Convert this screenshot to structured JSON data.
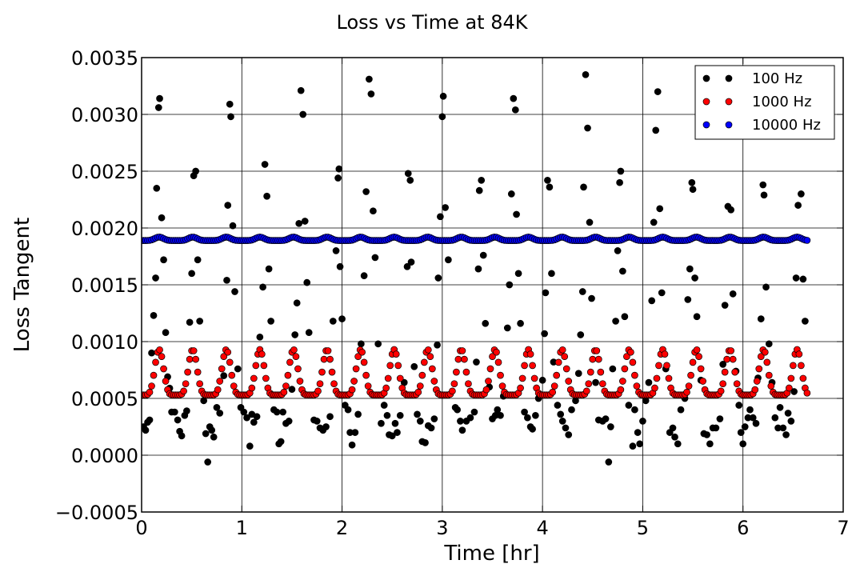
{
  "chart_data": {
    "type": "scatter",
    "title": "Loss vs Time at 84K",
    "xlabel": "Time [hr]",
    "ylabel": "Loss Tangent",
    "xlim": [
      0,
      7
    ],
    "ylim": [
      -0.0005,
      0.0035
    ],
    "xticks": [
      "0",
      "1",
      "2",
      "3",
      "4",
      "5",
      "6",
      "7"
    ],
    "yticks": [
      "−0.0005",
      "0.0000",
      "0.0005",
      "0.0010",
      "0.0015",
      "0.0020",
      "0.0025",
      "0.0030",
      "0.0035"
    ],
    "grid": true,
    "legend_position": "top-right",
    "series": [
      {
        "name": "100 Hz",
        "color": "#000000",
        "points": [
          [
            0.02,
            0.00025
          ],
          [
            0.04,
            0.00022
          ],
          [
            0.06,
            0.00029
          ],
          [
            0.08,
            0.00031
          ],
          [
            0.1,
            0.0009
          ],
          [
            0.12,
            0.00123
          ],
          [
            0.14,
            0.00156
          ],
          [
            0.15,
            0.00235
          ],
          [
            0.17,
            0.00306
          ],
          [
            0.18,
            0.00314
          ],
          [
            0.2,
            0.00209
          ],
          [
            0.22,
            0.00172
          ],
          [
            0.24,
            0.00108
          ],
          [
            0.26,
            0.00069
          ],
          [
            0.28,
            0.00059
          ],
          [
            0.3,
            0.00038
          ],
          [
            0.33,
            0.00038
          ],
          [
            0.36,
            0.00031
          ],
          [
            0.38,
            0.00021
          ],
          [
            0.4,
            0.00017
          ],
          [
            0.43,
            0.00035
          ],
          [
            0.45,
            0.00039
          ],
          [
            0.48,
            0.00117
          ],
          [
            0.5,
            0.0016
          ],
          [
            0.52,
            0.00246
          ],
          [
            0.54,
            0.0025
          ],
          [
            0.56,
            0.00172
          ],
          [
            0.58,
            0.00118
          ],
          [
            0.62,
            0.00048
          ],
          [
            0.64,
            0.00019
          ],
          [
            0.66,
            -6e-05
          ],
          [
            0.68,
            0.00025
          ],
          [
            0.7,
            0.00022
          ],
          [
            0.72,
            0.00016
          ],
          [
            0.75,
            0.00042
          ],
          [
            0.78,
            0.00037
          ],
          [
            0.82,
            0.0007
          ],
          [
            0.85,
            0.00154
          ],
          [
            0.86,
            0.0022
          ],
          [
            0.88,
            0.00309
          ],
          [
            0.89,
            0.00298
          ],
          [
            0.91,
            0.00202
          ],
          [
            0.93,
            0.00144
          ],
          [
            0.96,
            0.00076
          ],
          [
            0.99,
            0.00042
          ],
          [
            1.02,
            0.00038
          ],
          [
            1.05,
            0.00033
          ],
          [
            1.08,
            8e-05
          ],
          [
            1.1,
            0.00036
          ],
          [
            1.12,
            0.00029
          ],
          [
            1.15,
            0.00034
          ],
          [
            1.18,
            0.00104
          ],
          [
            1.21,
            0.00148
          ],
          [
            1.23,
            0.00256
          ],
          [
            1.25,
            0.00228
          ],
          [
            1.27,
            0.00164
          ],
          [
            1.29,
            0.00118
          ],
          [
            1.32,
            0.0004
          ],
          [
            1.35,
            0.00038
          ],
          [
            1.37,
            0.0001
          ],
          [
            1.39,
            0.00012
          ],
          [
            1.41,
            0.00038
          ],
          [
            1.44,
            0.00028
          ],
          [
            1.47,
            0.0003
          ],
          [
            1.5,
            0.00058
          ],
          [
            1.53,
            0.00106
          ],
          [
            1.55,
            0.00134
          ],
          [
            1.57,
            0.00204
          ],
          [
            1.59,
            0.00321
          ],
          [
            1.61,
            0.003
          ],
          [
            1.63,
            0.00206
          ],
          [
            1.65,
            0.00152
          ],
          [
            1.67,
            0.00108
          ],
          [
            1.72,
            0.00031
          ],
          [
            1.75,
            0.0003
          ],
          [
            1.78,
            0.00024
          ],
          [
            1.81,
            0.00022
          ],
          [
            1.84,
            0.00025
          ],
          [
            1.88,
            0.00034
          ],
          [
            1.91,
            0.00118
          ],
          [
            1.94,
            0.0018
          ],
          [
            1.96,
            0.00244
          ],
          [
            1.97,
            0.00252
          ],
          [
            1.98,
            0.00166
          ],
          [
            2.0,
            0.0012
          ],
          [
            2.03,
            0.00044
          ],
          [
            2.06,
            0.0004
          ],
          [
            2.08,
            0.0002
          ],
          [
            2.1,
            9e-05
          ],
          [
            2.13,
            0.0002
          ],
          [
            2.16,
            0.00036
          ],
          [
            2.19,
            0.00098
          ],
          [
            2.22,
            0.00158
          ],
          [
            2.24,
            0.00232
          ],
          [
            2.27,
            0.00331
          ],
          [
            2.29,
            0.00318
          ],
          [
            2.31,
            0.00215
          ],
          [
            2.33,
            0.00174
          ],
          [
            2.36,
            0.00098
          ],
          [
            2.39,
            0.00028
          ],
          [
            2.42,
            0.00044
          ],
          [
            2.45,
            0.00035
          ],
          [
            2.47,
            0.00018
          ],
          [
            2.5,
            0.00017
          ],
          [
            2.53,
            0.00028
          ],
          [
            2.55,
            0.0002
          ],
          [
            2.58,
            0.00035
          ],
          [
            2.62,
            0.00064
          ],
          [
            2.65,
            0.00166
          ],
          [
            2.66,
            0.00248
          ],
          [
            2.68,
            0.00242
          ],
          [
            2.69,
            0.0017
          ],
          [
            2.72,
            0.00078
          ],
          [
            2.75,
            0.00036
          ],
          [
            2.78,
            0.0003
          ],
          [
            2.8,
            0.00012
          ],
          [
            2.83,
            0.00011
          ],
          [
            2.86,
            0.00026
          ],
          [
            2.89,
            0.00024
          ],
          [
            2.92,
            0.00032
          ],
          [
            2.95,
            0.00097
          ],
          [
            2.96,
            0.00156
          ],
          [
            2.98,
            0.0021
          ],
          [
            3.0,
            0.00298
          ],
          [
            3.01,
            0.00316
          ],
          [
            3.03,
            0.00218
          ],
          [
            3.06,
            0.00172
          ],
          [
            3.13,
            0.00042
          ],
          [
            3.15,
            0.0004
          ],
          [
            3.18,
            0.0003
          ],
          [
            3.2,
            0.00022
          ],
          [
            3.24,
            0.0003
          ],
          [
            3.28,
            0.00033
          ],
          [
            3.32,
            0.00038
          ],
          [
            3.34,
            0.00082
          ],
          [
            3.36,
            0.00164
          ],
          [
            3.37,
            0.00233
          ],
          [
            3.39,
            0.00242
          ],
          [
            3.41,
            0.00176
          ],
          [
            3.43,
            0.00116
          ],
          [
            3.47,
            0.0006
          ],
          [
            3.5,
            0.00032
          ],
          [
            3.53,
            0.00035
          ],
          [
            3.55,
            0.0004
          ],
          [
            3.58,
            0.00035
          ],
          [
            3.61,
            0.00052
          ],
          [
            3.65,
            0.00112
          ],
          [
            3.67,
            0.0015
          ],
          [
            3.69,
            0.0023
          ],
          [
            3.71,
            0.00314
          ],
          [
            3.73,
            0.00304
          ],
          [
            3.74,
            0.00212
          ],
          [
            3.76,
            0.0016
          ],
          [
            3.78,
            0.00116
          ],
          [
            3.82,
            0.00038
          ],
          [
            3.85,
            0.00033
          ],
          [
            3.88,
            0.00025
          ],
          [
            3.9,
            0.00023
          ],
          [
            3.93,
            0.00035
          ],
          [
            3.96,
            0.0005
          ],
          [
            4.0,
            0.00066
          ],
          [
            4.02,
            0.00107
          ],
          [
            4.03,
            0.00143
          ],
          [
            4.05,
            0.00242
          ],
          [
            4.07,
            0.00236
          ],
          [
            4.09,
            0.0016
          ],
          [
            4.11,
            0.00082
          ],
          [
            4.15,
            0.00044
          ],
          [
            4.18,
            0.00036
          ],
          [
            4.2,
            0.0003
          ],
          [
            4.23,
            0.00024
          ],
          [
            4.26,
            0.00018
          ],
          [
            4.29,
            0.0004
          ],
          [
            4.33,
            0.00048
          ],
          [
            4.36,
            0.00072
          ],
          [
            4.38,
            0.00106
          ],
          [
            4.4,
            0.00144
          ],
          [
            4.41,
            0.00236
          ],
          [
            4.43,
            0.00335
          ],
          [
            4.45,
            0.00288
          ],
          [
            4.47,
            0.00205
          ],
          [
            4.49,
            0.00138
          ],
          [
            4.53,
            0.00064
          ],
          [
            4.56,
            0.00031
          ],
          [
            4.6,
            0.0003
          ],
          [
            4.63,
            0.00032
          ],
          [
            4.66,
            -6e-05
          ],
          [
            4.68,
            0.00025
          ],
          [
            4.7,
            0.00076
          ],
          [
            4.73,
            0.00118
          ],
          [
            4.75,
            0.0018
          ],
          [
            4.77,
            0.0024
          ],
          [
            4.78,
            0.0025
          ],
          [
            4.8,
            0.00162
          ],
          [
            4.82,
            0.00122
          ],
          [
            4.86,
            0.00044
          ],
          [
            4.9,
            8e-05
          ],
          [
            4.92,
            0.0004
          ],
          [
            4.95,
            0.0002
          ],
          [
            4.97,
            0.0001
          ],
          [
            5.0,
            0.0003
          ],
          [
            5.03,
            0.00048
          ],
          [
            5.06,
            0.00064
          ],
          [
            5.09,
            0.00136
          ],
          [
            5.11,
            0.00205
          ],
          [
            5.13,
            0.00286
          ],
          [
            5.15,
            0.0032
          ],
          [
            5.17,
            0.00217
          ],
          [
            5.19,
            0.00143
          ],
          [
            5.23,
            0.00076
          ],
          [
            5.27,
            0.0002
          ],
          [
            5.3,
            0.00024
          ],
          [
            5.32,
            0.00016
          ],
          [
            5.35,
            0.0001
          ],
          [
            5.38,
            0.0004
          ],
          [
            5.42,
            0.0005
          ],
          [
            5.45,
            0.00137
          ],
          [
            5.47,
            0.00164
          ],
          [
            5.49,
            0.0024
          ],
          [
            5.5,
            0.00234
          ],
          [
            5.52,
            0.00156
          ],
          [
            5.54,
            0.00122
          ],
          [
            5.58,
            0.00066
          ],
          [
            5.61,
            0.00019
          ],
          [
            5.64,
            0.00018
          ],
          [
            5.67,
            0.0001
          ],
          [
            5.7,
            0.00024
          ],
          [
            5.73,
            0.00024
          ],
          [
            5.77,
            0.00032
          ],
          [
            5.8,
            0.0008
          ],
          [
            5.82,
            0.00132
          ],
          [
            5.85,
            0.00219
          ],
          [
            5.88,
            0.00216
          ],
          [
            5.9,
            0.00142
          ],
          [
            5.93,
            0.00074
          ],
          [
            5.96,
            0.00044
          ],
          [
            5.98,
            0.0002
          ],
          [
            6.0,
            0.0001
          ],
          [
            6.02,
            0.00025
          ],
          [
            6.05,
            0.00033
          ],
          [
            6.07,
            0.0004
          ],
          [
            6.1,
            0.00033
          ],
          [
            6.13,
            0.00028
          ],
          [
            6.15,
            0.00068
          ],
          [
            6.18,
            0.0012
          ],
          [
            6.2,
            0.00238
          ],
          [
            6.21,
            0.00229
          ],
          [
            6.23,
            0.00148
          ],
          [
            6.26,
            0.00098
          ],
          [
            6.29,
            0.00064
          ],
          [
            6.32,
            0.00033
          ],
          [
            6.35,
            0.00024
          ],
          [
            6.37,
            0.00042
          ],
          [
            6.4,
            0.00024
          ],
          [
            6.43,
            0.00018
          ],
          [
            6.45,
            0.00037
          ],
          [
            6.48,
            0.0003
          ],
          [
            6.51,
            0.00056
          ],
          [
            6.53,
            0.00156
          ],
          [
            6.55,
            0.0022
          ],
          [
            6.58,
            0.0023
          ],
          [
            6.6,
            0.00155
          ],
          [
            6.62,
            0.00118
          ]
        ]
      },
      {
        "name": "1000 Hz",
        "color": "#ff0000",
        "model": {
          "x_start": 0.0,
          "x_end": 6.64,
          "step": 0.02,
          "baseline": 0.00053,
          "peak": 0.00093,
          "period": 0.335,
          "phase": 0.175,
          "exponent": 3
        }
      },
      {
        "name": "10000 Hz",
        "color": "#0000ff",
        "model": {
          "x_start": 0.0,
          "x_end": 6.64,
          "step": 0.02,
          "baseline": 0.00189,
          "peak": 0.00192,
          "period": 0.335,
          "phase": 0.175,
          "exponent": 3
        }
      }
    ]
  }
}
